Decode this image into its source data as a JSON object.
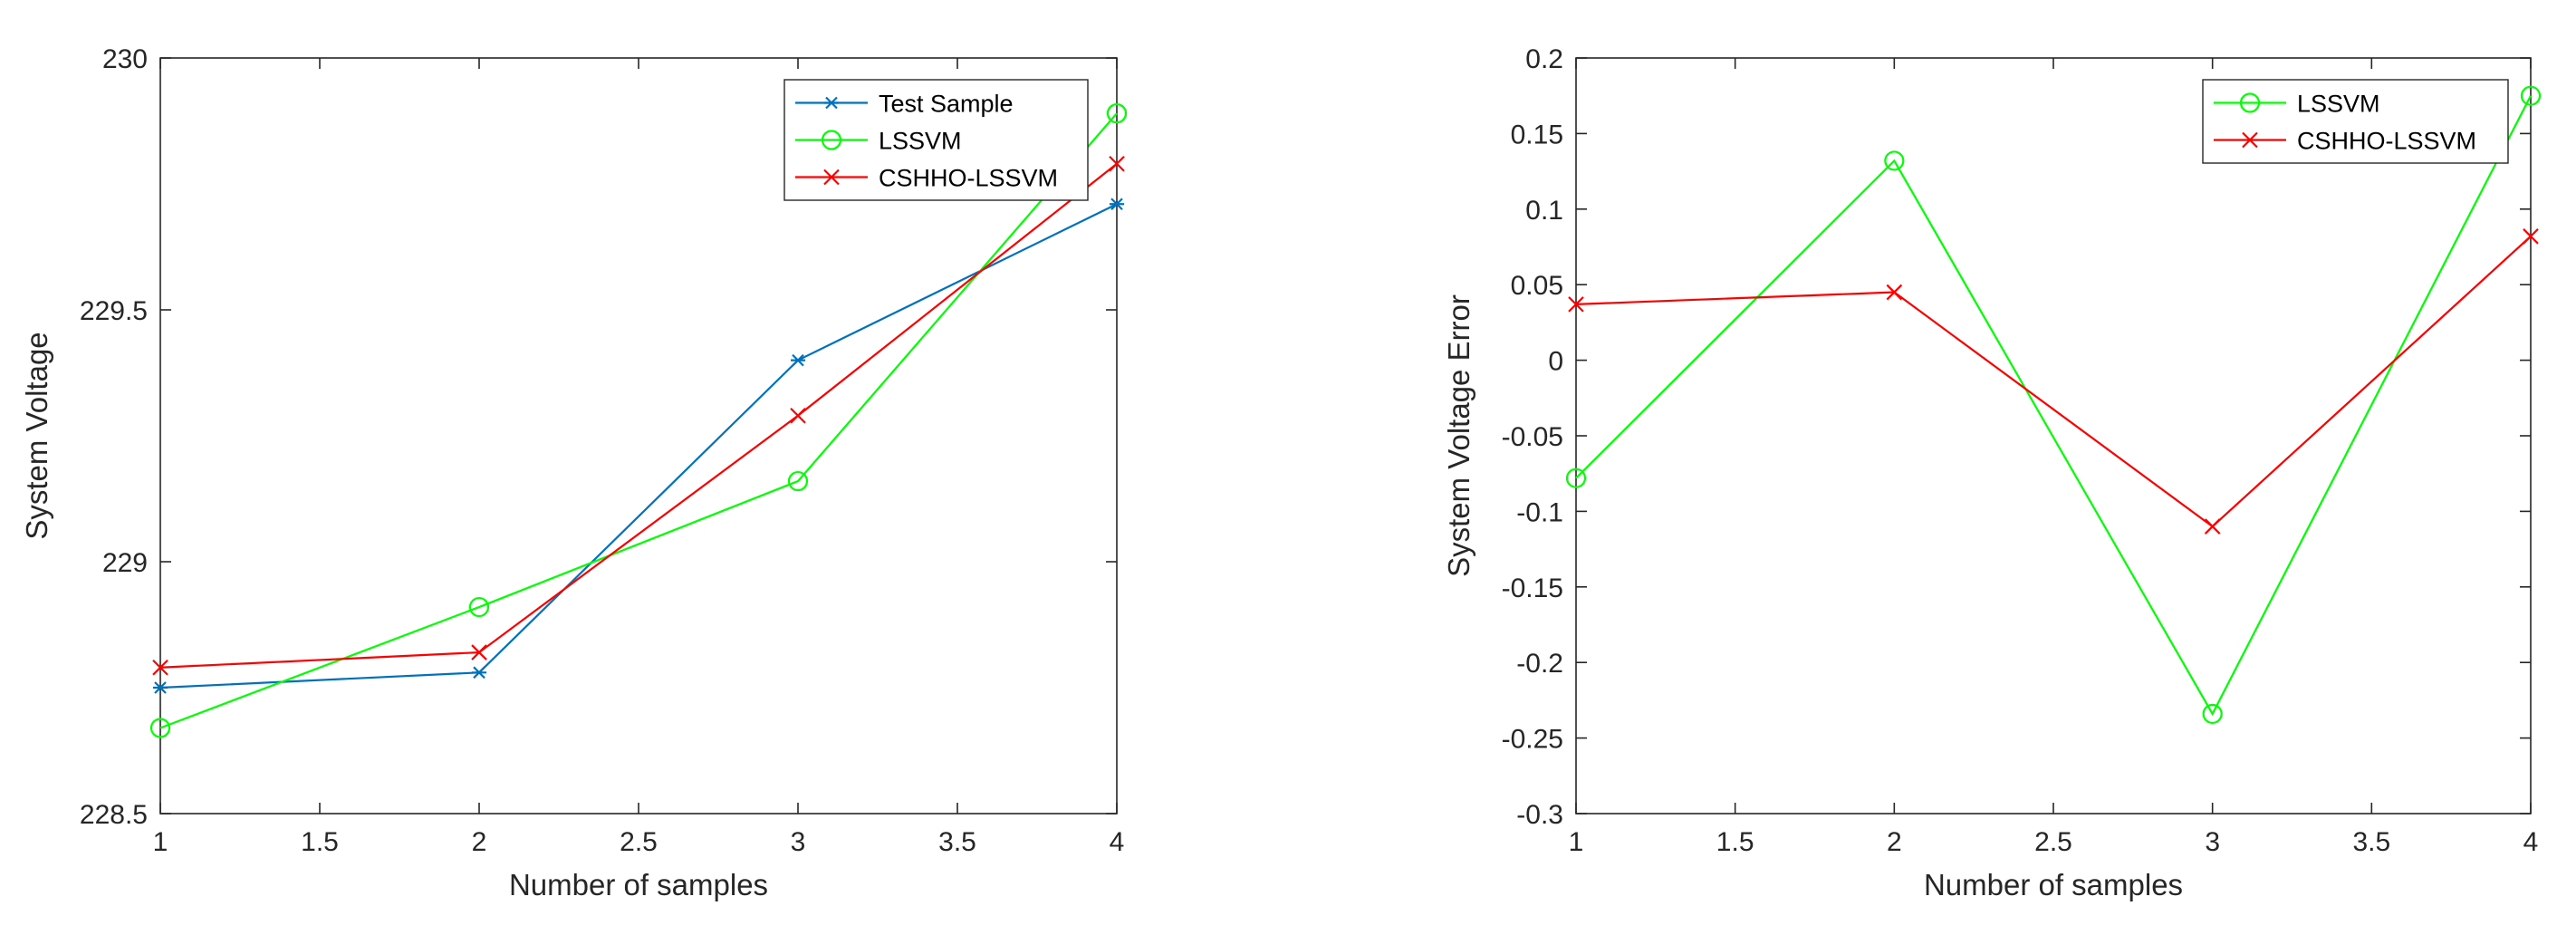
{
  "chart_data": [
    {
      "type": "line",
      "title": "",
      "xlabel": "Number of samples",
      "ylabel": "System Voltage",
      "xlim": [
        1,
        4
      ],
      "ylim": [
        228.5,
        230
      ],
      "xticks": [
        1,
        1.5,
        2,
        2.5,
        3,
        3.5,
        4
      ],
      "yticks": [
        228.5,
        229,
        229.5,
        230
      ],
      "xtick_labels": [
        "1",
        "1.5",
        "2",
        "2.5",
        "3",
        "3.5",
        "4"
      ],
      "ytick_labels": [
        "228.5",
        "229",
        "229.5",
        "230"
      ],
      "grid": false,
      "legend_position": "top-right",
      "x": [
        1,
        2,
        3,
        4
      ],
      "series": [
        {
          "name": "Test Sample",
          "values": [
            228.75,
            228.78,
            229.4,
            229.71
          ],
          "color": "#0072BD",
          "marker": "asterisk"
        },
        {
          "name": "LSSVM",
          "values": [
            228.67,
            228.91,
            229.16,
            229.89
          ],
          "color": "#00FF00",
          "marker": "circle"
        },
        {
          "name": "CSHHO-LSSVM",
          "values": [
            228.79,
            228.82,
            229.29,
            229.79
          ],
          "color": "#FF0000",
          "marker": "x"
        }
      ]
    },
    {
      "type": "line",
      "title": "",
      "xlabel": "Number of samples",
      "ylabel": "System Voltage Error",
      "xlim": [
        1,
        4
      ],
      "ylim": [
        -0.3,
        0.2
      ],
      "xticks": [
        1,
        1.5,
        2,
        2.5,
        3,
        3.5,
        4
      ],
      "yticks": [
        -0.3,
        -0.25,
        -0.2,
        -0.15,
        -0.1,
        -0.05,
        0,
        0.05,
        0.1,
        0.15,
        0.2
      ],
      "xtick_labels": [
        "1",
        "1.5",
        "2",
        "2.5",
        "3",
        "3.5",
        "4"
      ],
      "ytick_labels": [
        "-0.3",
        "-0.25",
        "-0.2",
        "-0.15",
        "-0.1",
        "-0.05",
        "0",
        "0.05",
        "0.1",
        "0.15",
        "0.2"
      ],
      "grid": false,
      "legend_position": "top-right",
      "x": [
        1,
        2,
        3,
        4
      ],
      "series": [
        {
          "name": "LSSVM",
          "values": [
            -0.078,
            0.132,
            -0.234,
            0.175
          ],
          "color": "#00FF00",
          "marker": "circle"
        },
        {
          "name": "CSHHO-LSSVM",
          "values": [
            0.037,
            0.045,
            -0.11,
            0.082
          ],
          "color": "#FF0000",
          "marker": "x"
        }
      ]
    }
  ]
}
